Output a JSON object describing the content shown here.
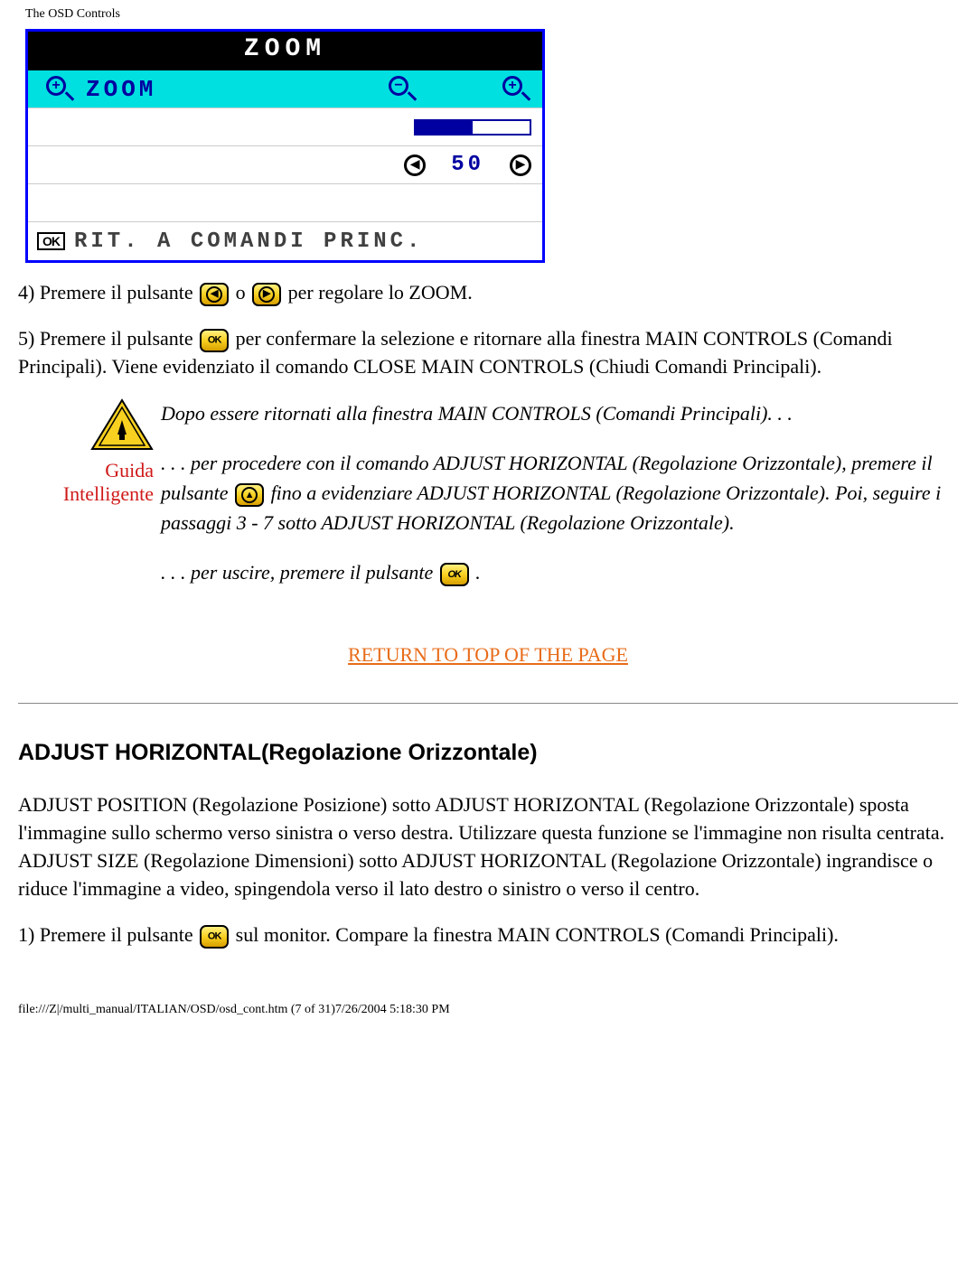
{
  "page": {
    "header": "The OSD Controls",
    "footer": "file:///Z|/multi_manual/ITALIAN/OSD/osd_cont.htm (7 of 31)7/26/2004 5:18:30 PM"
  },
  "osd": {
    "title": "ZOOM",
    "zoom_label": "ZOOM",
    "slider_value": 50,
    "slider_value_text": "50",
    "return_label": "RIT. A COMANDI PRINC.",
    "ok_label": "OK"
  },
  "colors": {
    "osd_border": "#0000ff",
    "cyan_row": "#00e0e0",
    "deep_blue": "#0000a0",
    "button_fill": "#f8d020",
    "button_grad_top": "#fff080",
    "button_grad_bottom": "#d8a000",
    "link": "#e86c1a",
    "guide_label": "#d01818"
  },
  "step4": {
    "prefix": "4) Premere il pulsante ",
    "mid": " o ",
    "suffix": " per regolare lo ZOOM."
  },
  "step5": {
    "prefix": "5) Premere il pulsante ",
    "suffix": " per confermare la selezione e ritornare alla finestra MAIN CONTROLS (Comandi Principali). Viene evidenziato il comando CLOSE MAIN CONTROLS (Chiudi Comandi Principali)."
  },
  "guide": {
    "label": "Guida Intelligente",
    "p1": "Dopo essere ritornati alla finestra MAIN CONTROLS (Comandi Principali). . .",
    "p2a": ". . . per procedere con il comando ADJUST HORIZONTAL (Regolazione Orizzontale), premere il pulsante ",
    "p2b": " fino a evidenziare ADJUST HORIZONTAL (Regolazione Orizzontale). Poi, seguire i passaggi 3 - 7 sotto ADJUST HORIZONTAL (Regolazione Orizzontale).",
    "p3a": ". . . per uscire, premere il pulsante ",
    "p3b": " ."
  },
  "return_link": "RETURN TO TOP OF THE PAGE",
  "section": {
    "heading": "ADJUST HORIZONTAL(Regolazione Orizzontale)",
    "body": "ADJUST POSITION (Regolazione Posizione) sotto ADJUST HORIZONTAL (Regolazione Orizzontale) sposta l'immagine sullo schermo verso sinistra o verso destra. Utilizzare questa funzione se l'immagine non risulta centrata. ADJUST SIZE (Regolazione Dimensioni) sotto ADJUST HORIZONTAL (Regolazione Orizzontale) ingrandisce o riduce l'immagine a video, spingendola verso il lato destro o sinistro o verso il centro."
  },
  "step1": {
    "prefix": "1) Premere il pulsante ",
    "suffix": " sul monitor. Compare la finestra MAIN CONTROLS (Comandi Principali)."
  }
}
